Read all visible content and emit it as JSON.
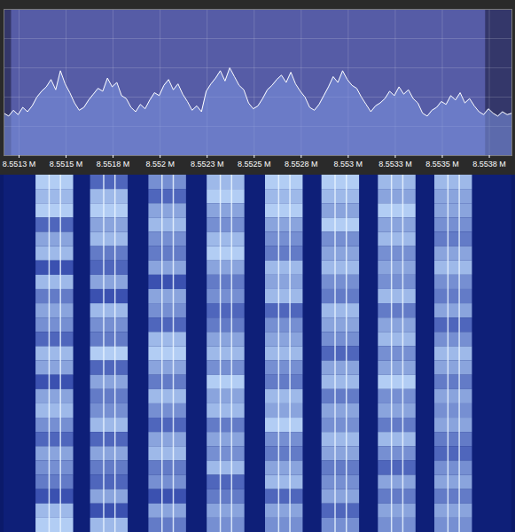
{
  "chart_data": [
    {
      "type": "line",
      "x": [
        8.55117,
        8.551195,
        8.55122,
        8.551245,
        8.55127,
        8.551295,
        8.55132,
        8.551345,
        8.55137,
        8.551395,
        8.55142,
        8.551445,
        8.55147,
        8.551495,
        8.55152,
        8.551545,
        8.55157,
        8.551595,
        8.55162,
        8.551645,
        8.55167,
        8.551695,
        8.55172,
        8.551745,
        8.55177,
        8.551795,
        8.55182,
        8.551845,
        8.55187,
        8.551895,
        8.55192,
        8.551945,
        8.55197,
        8.551995,
        8.55202,
        8.552045,
        8.55207,
        8.552095,
        8.55212,
        8.552145,
        8.55217,
        8.552195,
        8.55222,
        8.552245,
        8.55227,
        8.552295,
        8.55232,
        8.552345,
        8.55237,
        8.552395,
        8.55242,
        8.552445,
        8.55247,
        8.552495,
        8.55252,
        8.552545,
        8.55257,
        8.552595,
        8.55262,
        8.552645,
        8.55267,
        8.552695,
        8.55272,
        8.552745,
        8.55277,
        8.552795,
        8.55282,
        8.552845,
        8.55287,
        8.552895,
        8.55292,
        8.552945,
        8.55297,
        8.552995,
        8.55302,
        8.553045,
        8.55307,
        8.553095,
        8.55312,
        8.553145,
        8.55317,
        8.553195,
        8.55322,
        8.553245,
        8.55327,
        8.553295,
        8.55332,
        8.553345,
        8.55337,
        8.553395,
        8.55342,
        8.553445,
        8.55347,
        8.553495,
        8.55352,
        8.553545,
        8.55357,
        8.553595,
        8.55362,
        8.553645,
        8.55367,
        8.553695,
        8.55372,
        8.553745,
        8.55377,
        8.553795,
        8.55382,
        8.553845,
        8.55387
      ],
      "values": [
        29,
        27,
        31,
        28,
        33,
        30,
        34,
        40,
        44,
        47,
        52,
        45,
        58,
        49,
        43,
        36,
        31,
        33,
        38,
        42,
        46,
        44,
        53,
        47,
        50,
        41,
        39,
        33,
        30,
        35,
        32,
        38,
        43,
        41,
        48,
        52,
        45,
        49,
        42,
        37,
        31,
        34,
        30,
        44,
        49,
        53,
        58,
        51,
        60,
        54,
        48,
        45,
        36,
        32,
        34,
        39,
        45,
        48,
        52,
        55,
        50,
        57,
        49,
        44,
        40,
        33,
        31,
        35,
        41,
        47,
        54,
        50,
        58,
        52,
        48,
        46,
        40,
        35,
        30,
        34,
        36,
        39,
        44,
        41,
        47,
        42,
        45,
        39,
        36,
        29,
        27,
        31,
        33,
        37,
        35,
        41,
        38,
        43,
        36,
        39,
        34,
        30,
        28,
        32,
        29,
        27,
        30,
        28,
        29
      ],
      "color": "#ffffff",
      "xlim": [
        8.55117,
        8.55387
      ],
      "xticks": [
        {
          "value": 8.55125,
          "label": "8.5513 M"
        },
        {
          "value": 8.5515,
          "label": "8.5515 M"
        },
        {
          "value": 8.55175,
          "label": "8.5518 M"
        },
        {
          "value": 8.552,
          "label": "8.552 M"
        },
        {
          "value": 8.55225,
          "label": "8.5523 M"
        },
        {
          "value": 8.5525,
          "label": "8.5525 M"
        },
        {
          "value": 8.55275,
          "label": "8.5528 M"
        },
        {
          "value": 8.553,
          "label": "8.553 M"
        },
        {
          "value": 8.55325,
          "label": "8.5533 M"
        },
        {
          "value": 8.5535,
          "label": "8.5535 M"
        },
        {
          "value": 8.55375,
          "label": "8.5538 M"
        }
      ],
      "ylim": [
        0,
        100
      ],
      "yticks": [
        20,
        40,
        60,
        80
      ],
      "grid": true,
      "tick_labels": "x",
      "passband": [
        8.55121,
        8.55373
      ]
    },
    {
      "type": "heatmap",
      "xlim": [
        8.55117,
        8.55387
      ],
      "tick_labels": false,
      "zlim": [
        0,
        9
      ],
      "channels": [
        {
          "lo": 8.55134,
          "hi": 8.55154,
          "carriers": [
            8.55141,
            8.55147
          ],
          "values": [
            8,
            7,
            8,
            3,
            6,
            7,
            2,
            7,
            4,
            6,
            5,
            3,
            7,
            6,
            2,
            6,
            7,
            5,
            3,
            6,
            5,
            4,
            2,
            7,
            8
          ]
        },
        {
          "lo": 8.55163,
          "hi": 8.55183,
          "carriers": [
            8.5517,
            8.55176
          ],
          "values": [
            3,
            7,
            8,
            6,
            7,
            4,
            3,
            6,
            2,
            7,
            5,
            4,
            8,
            3,
            6,
            4,
            5,
            7,
            3,
            6,
            4,
            3,
            6,
            2,
            7
          ]
        },
        {
          "lo": 8.55194,
          "hi": 8.55214,
          "carriers": [
            8.55201,
            8.55207
          ],
          "values": [
            5,
            3,
            6,
            7,
            5,
            4,
            6,
            2,
            6,
            5,
            3,
            7,
            8,
            6,
            4,
            7,
            5,
            3,
            6,
            7,
            4,
            5,
            2,
            6,
            4
          ]
        },
        {
          "lo": 8.55225,
          "hi": 8.55245,
          "carriers": [
            8.55232,
            8.55238
          ],
          "values": [
            7,
            8,
            6,
            5,
            7,
            8,
            6,
            4,
            5,
            3,
            4,
            6,
            7,
            5,
            8,
            6,
            7,
            4,
            6,
            5,
            7,
            3,
            4,
            6,
            5
          ]
        },
        {
          "lo": 8.55256,
          "hi": 8.55276,
          "carriers": [
            8.55263,
            8.55269
          ],
          "values": [
            8,
            7,
            8,
            6,
            5,
            4,
            7,
            6,
            7,
            3,
            5,
            6,
            7,
            5,
            4,
            7,
            6,
            8,
            5,
            4,
            6,
            7,
            3,
            6,
            5
          ]
        },
        {
          "lo": 8.55286,
          "hi": 8.55306,
          "carriers": [
            8.55293,
            8.55299
          ],
          "values": [
            8,
            7,
            6,
            8,
            5,
            6,
            7,
            5,
            4,
            7,
            6,
            5,
            3,
            6,
            7,
            4,
            6,
            5,
            7,
            6,
            4,
            5,
            6,
            3,
            5
          ]
        },
        {
          "lo": 8.55316,
          "hi": 8.55336,
          "carriers": [
            8.55323,
            8.55329
          ],
          "values": [
            7,
            6,
            8,
            6,
            7,
            5,
            6,
            5,
            7,
            4,
            6,
            7,
            5,
            6,
            8,
            5,
            6,
            4,
            7,
            5,
            3,
            6,
            4,
            6,
            5
          ]
        },
        {
          "lo": 8.55346,
          "hi": 8.55366,
          "carriers": [
            8.55353,
            8.55359
          ],
          "values": [
            7,
            6,
            6,
            5,
            4,
            6,
            7,
            5,
            4,
            6,
            3,
            5,
            7,
            6,
            4,
            6,
            5,
            6,
            4,
            3,
            5,
            6,
            4,
            6,
            5
          ]
        }
      ]
    }
  ]
}
